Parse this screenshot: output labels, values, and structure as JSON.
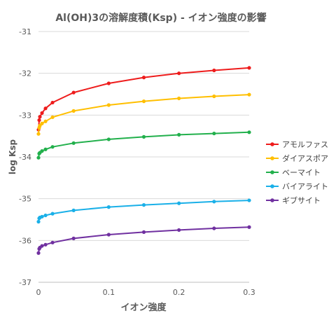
{
  "chart_data": {
    "type": "line",
    "title": "Al(OH)3の溶解度積(Ksp) - イオン強度の影響",
    "xlabel": "イオン強度",
    "ylabel": "log Ksp",
    "xlim": [
      0,
      0.3
    ],
    "ylim": [
      -37,
      -31
    ],
    "x_ticks": [
      "0",
      "0.1",
      "0.2",
      "0.3"
    ],
    "y_ticks": [
      "-31",
      "-32",
      "-33",
      "-34",
      "-35",
      "-36",
      "-37"
    ],
    "grid": "horizontal",
    "legend_position": "right",
    "x": [
      0,
      0.001,
      0.002,
      0.005,
      0.01,
      0.02,
      0.05,
      0.1,
      0.15,
      0.2,
      0.25,
      0.3
    ],
    "series": [
      {
        "name": "アモルファス",
        "color": "#ee1c1c",
        "values": [
          -33.35,
          -33.12,
          -33.04,
          -32.95,
          -32.84,
          -32.7,
          -32.46,
          -32.24,
          -32.1,
          -32.0,
          -31.93,
          -31.87
        ]
      },
      {
        "name": "ダイアスポア",
        "color": "#ffbf00",
        "values": [
          -33.45,
          -33.3,
          -33.25,
          -33.2,
          -33.15,
          -33.05,
          -32.9,
          -32.76,
          -32.67,
          -32.6,
          -32.55,
          -32.51
        ]
      },
      {
        "name": "ベーマイト",
        "color": "#22b04c",
        "values": [
          -34.02,
          -33.92,
          -33.9,
          -33.86,
          -33.82,
          -33.76,
          -33.67,
          -33.58,
          -33.52,
          -33.47,
          -33.44,
          -33.41
        ]
      },
      {
        "name": "バイアライト",
        "color": "#1ab0e8",
        "values": [
          -35.55,
          -35.47,
          -35.45,
          -35.43,
          -35.4,
          -35.36,
          -35.28,
          -35.2,
          -35.15,
          -35.11,
          -35.07,
          -35.04
        ]
      },
      {
        "name": "ギブサイト",
        "color": "#7030a0",
        "values": [
          -36.3,
          -36.2,
          -36.17,
          -36.13,
          -36.1,
          -36.05,
          -35.95,
          -35.86,
          -35.8,
          -35.75,
          -35.71,
          -35.68
        ]
      }
    ]
  }
}
